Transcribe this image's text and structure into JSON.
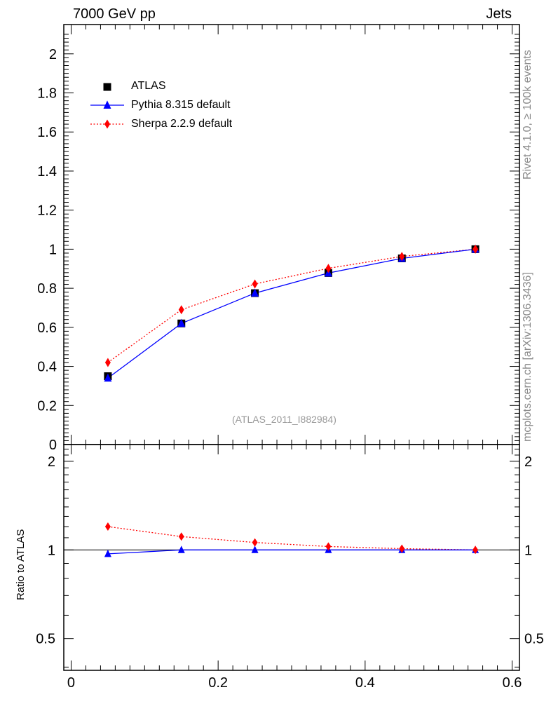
{
  "header": {
    "left": "7000 GeV pp",
    "right": "Jets"
  },
  "side_labels": {
    "rivet": "Rivet 4.1.0, ≥ 100k events",
    "mcplots": "mcplots.cern.ch [arXiv:1306.3436]"
  },
  "watermark": "(ATLAS_2011_I882984)",
  "ratio_ylabel": "Ratio to ATLAS",
  "colors": {
    "atlas": "#000000",
    "pythia": "#0000ff",
    "sherpa": "#ff0000"
  },
  "chart_data": {
    "type": "line",
    "title": "",
    "xlabel": "",
    "ylabel": "",
    "xlim": [
      -0.01,
      0.61
    ],
    "ylim": [
      0,
      2.15
    ],
    "xticks": [
      "0",
      "0.2",
      "0.4",
      "0.6"
    ],
    "yticks": [
      "0",
      "0.2",
      "0.4",
      "0.6",
      "0.8",
      "1",
      "1.2",
      "1.4",
      "1.6",
      "1.8",
      "2"
    ],
    "x": [
      0.05,
      0.15,
      0.25,
      0.35,
      0.45,
      0.55
    ],
    "series": [
      {
        "name": "ATLAS",
        "style": "markers-square",
        "values": [
          0.35,
          0.62,
          0.775,
          0.878,
          0.953,
          1.0
        ]
      },
      {
        "name": "Pythia 8.315 default",
        "style": "line-triangle",
        "values": [
          0.34,
          0.62,
          0.775,
          0.878,
          0.953,
          1.0
        ]
      },
      {
        "name": "Sherpa 2.2.9 default",
        "style": "dotted-diamond",
        "values": [
          0.42,
          0.69,
          0.822,
          0.902,
          0.963,
          1.0
        ]
      }
    ],
    "ratio": {
      "ylabel": "Ratio to ATLAS",
      "ylim": [
        0.39,
        2.28
      ],
      "yticks": [
        "0.5",
        "1",
        "2"
      ],
      "series": [
        {
          "name": "Pythia 8.315 default",
          "values": [
            0.97,
            1.0,
            1.0,
            1.0,
            1.0,
            1.0
          ]
        },
        {
          "name": "Sherpa 2.2.9 default",
          "values": [
            1.2,
            1.11,
            1.06,
            1.027,
            1.01,
            1.0
          ]
        }
      ]
    }
  }
}
